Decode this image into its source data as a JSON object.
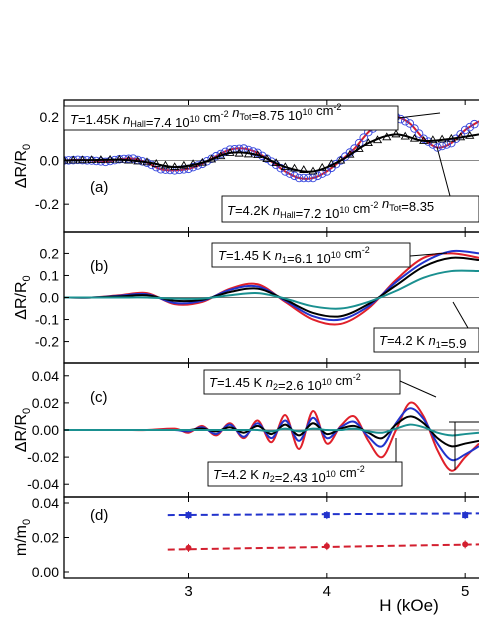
{
  "chart_data": [
    {
      "panel": "(a)",
      "type": "line",
      "ylabel": "ΔR/R0",
      "ylim": [
        -0.3,
        0.25
      ],
      "yticks": [
        "0.2",
        "0.0",
        "-0.2"
      ],
      "ytick_values": [
        0.2,
        0.0,
        -0.2
      ],
      "xlim": [
        2.1,
        5.1
      ],
      "series": [
        {
          "color": "#000000",
          "marker": "circle",
          "marker_color": "#3344dd",
          "curve_color": "#d31f2f",
          "x": [
            2.1,
            2.2,
            2.3,
            2.4,
            2.5,
            2.6,
            2.7,
            2.8,
            2.9,
            3.0,
            3.1,
            3.2,
            3.3,
            3.4,
            3.5,
            3.6,
            3.7,
            3.8,
            3.9,
            4.0,
            4.1,
            4.2,
            4.3,
            4.4,
            4.5,
            4.6,
            4.7,
            4.8,
            4.9,
            5.0,
            5.1
          ],
          "y": [
            0.0,
            0.003,
            0.0,
            -0.006,
            0.006,
            0.009,
            -0.01,
            -0.04,
            -0.045,
            -0.038,
            -0.015,
            0.02,
            0.05,
            0.055,
            0.035,
            -0.005,
            -0.05,
            -0.08,
            -0.08,
            -0.05,
            0.0,
            0.055,
            0.13,
            0.18,
            0.2,
            0.17,
            0.1,
            0.06,
            0.08,
            0.14,
            0.18
          ]
        },
        {
          "color": "#000000",
          "marker": "triangle",
          "marker_color": "#000000",
          "x": [
            2.1,
            2.3,
            2.5,
            2.7,
            2.9,
            3.1,
            3.3,
            3.5,
            3.7,
            3.9,
            4.1,
            4.3,
            4.5,
            4.7,
            4.9,
            5.1
          ],
          "y": [
            0.0,
            0.002,
            0.004,
            -0.008,
            -0.03,
            -0.01,
            0.035,
            0.025,
            -0.03,
            -0.05,
            0.0,
            0.08,
            0.12,
            0.09,
            0.1,
            0.12
          ]
        }
      ],
      "annotations": [
        {
          "text": "T=1.45K nHall=7.4 10^10 cm^-2 nTot=8.75 10^10 cm^-2"
        },
        {
          "text": "T=4.2K nHall=7.2 10^10 cm^-2 nTot=8.35"
        }
      ]
    },
    {
      "panel": "(b)",
      "type": "line",
      "ylabel": "ΔR/R0",
      "ylim": [
        -0.27,
        0.27
      ],
      "yticks": [
        "0.2",
        "0.1",
        "0.0",
        "-0.1",
        "-0.2"
      ],
      "ytick_values": [
        0.2,
        0.1,
        0.0,
        -0.1,
        -0.2
      ],
      "xlim": [
        2.1,
        5.1
      ],
      "series": [
        {
          "color": "#e0202a",
          "x": [
            2.1,
            2.3,
            2.5,
            2.7,
            2.9,
            3.1,
            3.3,
            3.5,
            3.7,
            3.9,
            4.1,
            4.3,
            4.5,
            4.7,
            4.9,
            5.1
          ],
          "y": [
            0.0,
            0.0,
            0.01,
            0.02,
            -0.03,
            -0.02,
            0.04,
            0.06,
            -0.02,
            -0.1,
            -0.12,
            -0.05,
            0.08,
            0.18,
            0.2,
            0.18
          ]
        },
        {
          "color": "#2233cc",
          "x": [
            2.1,
            2.3,
            2.5,
            2.7,
            2.9,
            3.1,
            3.3,
            3.5,
            3.7,
            3.9,
            4.1,
            4.3,
            4.5,
            4.7,
            4.9,
            5.1
          ],
          "y": [
            0.0,
            0.0,
            0.008,
            0.015,
            -0.025,
            -0.015,
            0.035,
            0.05,
            -0.015,
            -0.085,
            -0.1,
            -0.04,
            0.07,
            0.16,
            0.21,
            0.2
          ]
        },
        {
          "color": "#000000",
          "x": [
            2.1,
            2.3,
            2.5,
            2.7,
            2.9,
            3.1,
            3.3,
            3.5,
            3.7,
            3.9,
            4.1,
            4.3,
            4.5,
            4.7,
            4.9,
            5.1
          ],
          "y": [
            0.0,
            0.0,
            0.005,
            0.01,
            -0.015,
            -0.01,
            0.025,
            0.04,
            -0.01,
            -0.07,
            -0.085,
            -0.03,
            0.055,
            0.14,
            0.18,
            0.17
          ]
        },
        {
          "color": "#1a9090",
          "x": [
            2.1,
            2.3,
            2.5,
            2.7,
            2.9,
            3.1,
            3.3,
            3.5,
            3.7,
            3.9,
            4.1,
            4.3,
            4.5,
            4.7,
            4.9,
            5.1
          ],
          "y": [
            0.0,
            0.0,
            0.0,
            0.0,
            -0.005,
            -0.005,
            0.01,
            0.02,
            -0.005,
            -0.04,
            -0.05,
            -0.02,
            0.03,
            0.09,
            0.12,
            0.12
          ]
        }
      ],
      "annotations": [
        {
          "text": "T=1.45 K n1=6.1 10^10 cm^-2"
        },
        {
          "text": "T=4.2 K n1=5.9"
        }
      ]
    },
    {
      "panel": "(c)",
      "type": "line",
      "ylabel": "ΔR/R0",
      "ylim": [
        -0.045,
        0.045
      ],
      "yticks": [
        "0.04",
        "0.02",
        "0.00",
        "-0.02",
        "-0.04"
      ],
      "ytick_values": [
        0.04,
        0.02,
        0.0,
        -0.02,
        -0.04
      ],
      "xlim": [
        2.1,
        5.1
      ],
      "series": [
        {
          "color": "#e0202a",
          "x": [
            2.1,
            2.5,
            2.7,
            2.9,
            3.0,
            3.1,
            3.2,
            3.3,
            3.4,
            3.5,
            3.6,
            3.7,
            3.8,
            3.9,
            4.0,
            4.1,
            4.2,
            4.3,
            4.4,
            4.5,
            4.6,
            4.7,
            4.8,
            4.9,
            5.0,
            5.1
          ],
          "y": [
            0.0,
            0.0,
            0.0,
            0.001,
            -0.002,
            0.003,
            -0.004,
            0.005,
            -0.006,
            0.007,
            -0.009,
            0.011,
            -0.014,
            0.014,
            -0.01,
            0.003,
            0.01,
            -0.008,
            -0.02,
            0.0,
            0.02,
            0.01,
            -0.015,
            -0.03,
            -0.02,
            -0.01
          ]
        },
        {
          "color": "#2233cc",
          "x": [
            2.1,
            2.5,
            2.7,
            2.9,
            3.0,
            3.1,
            3.2,
            3.3,
            3.4,
            3.5,
            3.6,
            3.7,
            3.8,
            3.9,
            4.0,
            4.1,
            4.2,
            4.3,
            4.4,
            4.5,
            4.6,
            4.7,
            4.8,
            4.9,
            5.0,
            5.1
          ],
          "y": [
            0.0,
            0.0,
            0.0,
            0.0,
            -0.001,
            0.002,
            -0.003,
            0.004,
            -0.005,
            0.005,
            -0.006,
            0.007,
            -0.008,
            0.009,
            -0.006,
            0.002,
            0.006,
            -0.005,
            -0.012,
            0.005,
            0.016,
            0.008,
            -0.01,
            -0.022,
            -0.018,
            -0.012
          ]
        },
        {
          "color": "#000000",
          "x": [
            2.1,
            2.5,
            2.7,
            2.9,
            3.0,
            3.1,
            3.2,
            3.3,
            3.4,
            3.5,
            3.6,
            3.7,
            3.8,
            3.9,
            4.0,
            4.1,
            4.2,
            4.3,
            4.4,
            4.5,
            4.6,
            4.7,
            4.8,
            4.9,
            5.0,
            5.1
          ],
          "y": [
            0.0,
            0.0,
            0.0,
            0.0,
            0.0,
            0.001,
            -0.001,
            0.002,
            -0.002,
            0.003,
            -0.003,
            0.004,
            -0.004,
            0.005,
            -0.003,
            0.001,
            0.003,
            -0.002,
            -0.006,
            0.004,
            0.01,
            0.005,
            -0.006,
            -0.012,
            -0.01,
            -0.008
          ]
        },
        {
          "color": "#1a9090",
          "x": [
            2.1,
            2.5,
            2.7,
            2.9,
            3.0,
            3.1,
            3.2,
            3.3,
            3.4,
            3.5,
            3.6,
            3.7,
            3.8,
            3.9,
            4.0,
            4.1,
            4.2,
            4.3,
            4.4,
            4.5,
            4.6,
            4.7,
            4.8,
            4.9,
            5.0,
            5.1
          ],
          "y": [
            0.0,
            0.0,
            0.0,
            0.0,
            0.0,
            0.0,
            0.0,
            0.0,
            0.0,
            0.0,
            -0.001,
            0.001,
            -0.001,
            0.001,
            0.0,
            0.0,
            0.001,
            -0.001,
            -0.002,
            0.001,
            0.004,
            0.002,
            -0.002,
            -0.004,
            -0.003,
            -0.002
          ]
        }
      ],
      "annotations": [
        {
          "text": "T=1.45 K n2=2.6 10^10 cm^-2"
        },
        {
          "text": "T=4.2 K n2=2.43 10^10 cm^-2"
        }
      ]
    },
    {
      "panel": "(d)",
      "type": "scatter",
      "ylabel": "m/m0",
      "ylim": [
        0.0,
        0.04
      ],
      "yticks": [
        "0.04",
        "0.02",
        "0.00"
      ],
      "ytick_values": [
        0.04,
        0.02,
        0.0
      ],
      "xlim": [
        2.1,
        5.1
      ],
      "xlabel": "H (kOe)",
      "xticks": [
        "3",
        "4",
        "5"
      ],
      "xtick_values": [
        3,
        4,
        5
      ],
      "series": [
        {
          "color": "#2233cc",
          "marker": "square",
          "line": "dashed",
          "x": [
            3.0,
            4.0,
            5.0
          ],
          "y": [
            0.033,
            0.033,
            0.033
          ],
          "fit_x": [
            2.85,
            5.1
          ],
          "fit_y": [
            0.033,
            0.034
          ]
        },
        {
          "color": "#d31f2f",
          "marker": "circle",
          "line": "dashed",
          "x": [
            3.0,
            4.0,
            5.0
          ],
          "y": [
            0.014,
            0.015,
            0.016
          ],
          "fit_x": [
            2.85,
            5.1
          ],
          "fit_y": [
            0.013,
            0.016
          ]
        }
      ]
    }
  ],
  "labels": {
    "a": "(a)",
    "b": "(b)",
    "c": "(c)",
    "d": "(d)",
    "xlabel": "H (kOe)"
  }
}
